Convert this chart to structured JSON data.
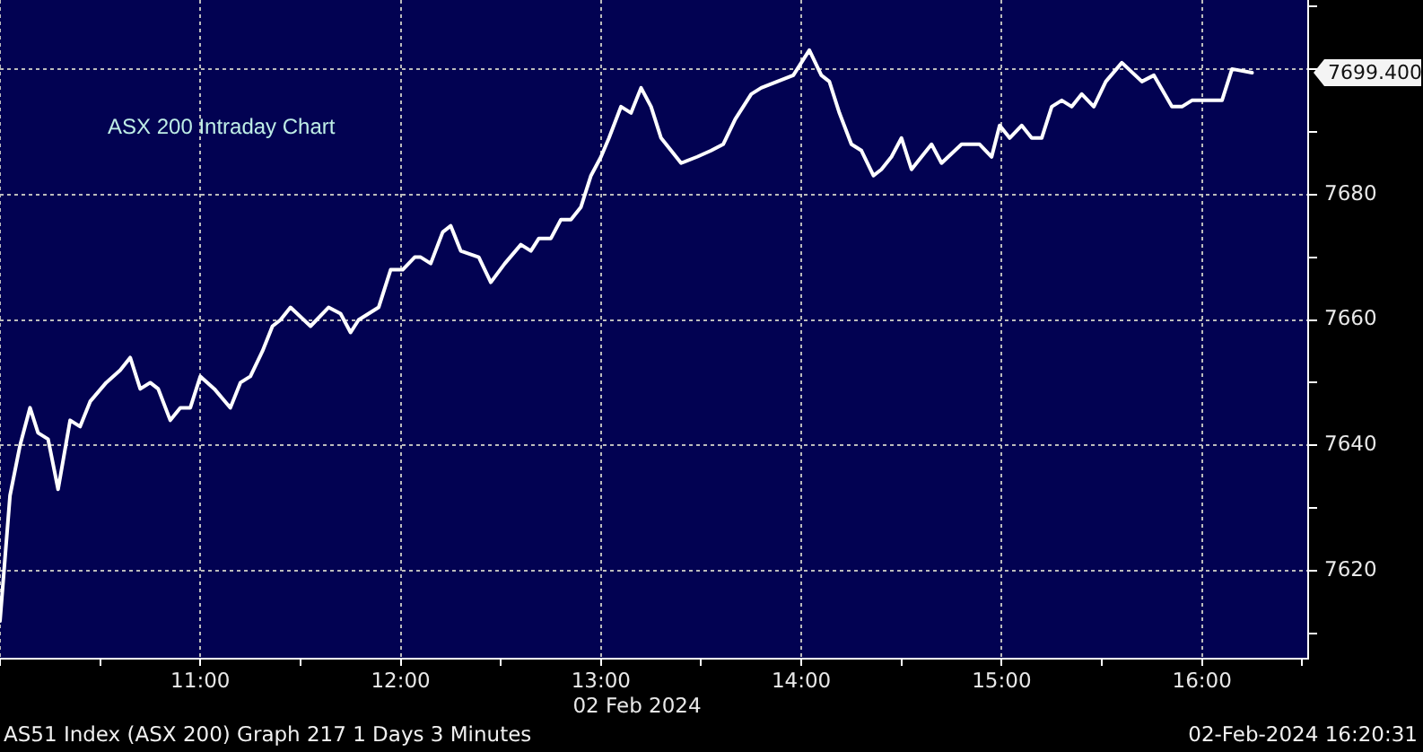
{
  "chart_data": {
    "type": "line",
    "title": "ASX 200 Intraday Chart",
    "xlabel": "02 Feb 2024",
    "x": [
      10,
      10.05,
      10.1,
      10.15,
      10.19,
      10.24,
      10.29,
      10.35,
      10.4,
      10.45,
      10.53,
      10.6,
      10.65,
      10.7,
      10.75,
      10.79,
      10.85,
      10.9,
      10.95,
      11,
      11.07,
      11.15,
      11.2,
      11.25,
      11.31,
      11.36,
      11.4,
      11.45,
      11.55,
      11.64,
      11.7,
      11.75,
      11.79,
      11.84,
      11.89,
      11.95,
      12.01,
      12.07,
      12.1,
      12.15,
      12.21,
      12.25,
      12.3,
      12.39,
      12.45,
      12.52,
      12.6,
      12.65,
      12.69,
      12.75,
      12.8,
      12.85,
      12.9,
      12.95,
      13,
      13.04,
      13.1,
      13.15,
      13.2,
      13.25,
      13.3,
      13.35,
      13.4,
      13.48,
      13.55,
      13.61,
      13.67,
      13.75,
      13.8,
      13.88,
      13.96,
      14.04,
      14.1,
      14.14,
      14.19,
      14.25,
      14.3,
      14.36,
      14.4,
      14.45,
      14.5,
      14.55,
      14.6,
      14.65,
      14.7,
      14.8,
      14.89,
      14.95,
      14.99,
      15.04,
      15.1,
      15.15,
      15.2,
      15.25,
      15.3,
      15.35,
      15.4,
      15.46,
      15.52,
      15.6,
      15.7,
      15.76,
      15.85,
      15.9,
      15.95,
      16,
      16.1,
      16.15,
      16.25
    ],
    "series": [
      {
        "color": "#ffffff",
        "values": [
          7612,
          7632,
          7640,
          7646,
          7642,
          7641,
          7633,
          7644,
          7643,
          7647,
          7650,
          7652,
          7654,
          7649,
          7650,
          7649,
          7644,
          7646,
          7646,
          7651,
          7649,
          7646,
          7650,
          7651,
          7655,
          7659,
          7660,
          7662,
          7659,
          7662,
          7661,
          7658,
          7660,
          7661,
          7662,
          7668,
          7668,
          7670,
          7670,
          7669,
          7674,
          7675,
          7671,
          7670,
          7666,
          7669,
          7672,
          7671,
          7673,
          7673,
          7676,
          7676,
          7678,
          7683,
          7686,
          7689,
          7694,
          7693,
          7697,
          7694,
          7689,
          7687,
          7685,
          7686,
          7687,
          7688,
          7692,
          7696,
          7697,
          7698,
          7699,
          7703,
          7699,
          7698,
          7693,
          7688,
          7687,
          7683,
          7684,
          7686,
          7689,
          7684,
          7686,
          7688,
          7685,
          7688,
          7688,
          7686,
          7691,
          7689,
          7691,
          7689,
          7689,
          7694,
          7695,
          7694,
          7696,
          7694,
          7698,
          7701,
          7698,
          7699,
          7694,
          7694,
          7695,
          7695,
          7695,
          7700,
          7699.4
        ]
      }
    ],
    "xlim": [
      10,
      16.53
    ],
    "ylim": [
      7606,
      7711
    ],
    "xticks": [
      {
        "value": 10,
        "label": null
      },
      {
        "value": 10.5,
        "label": null
      },
      {
        "value": 11,
        "label": "11:00"
      },
      {
        "value": 11.5,
        "label": null
      },
      {
        "value": 12,
        "label": "12:00"
      },
      {
        "value": 12.5,
        "label": null
      },
      {
        "value": 13,
        "label": "13:00"
      },
      {
        "value": 13.5,
        "label": null
      },
      {
        "value": 14,
        "label": "14:00"
      },
      {
        "value": 14.5,
        "label": null
      },
      {
        "value": 15,
        "label": "15:00"
      },
      {
        "value": 15.5,
        "label": null
      },
      {
        "value": 16,
        "label": "16:00"
      },
      {
        "value": 16.5,
        "label": null
      }
    ],
    "yticks": [
      {
        "value": 7610,
        "label": null
      },
      7620,
      {
        "value": 7630,
        "label": null
      },
      7640,
      {
        "value": 7650,
        "label": null
      },
      7660,
      {
        "value": 7670,
        "label": null
      },
      7680,
      {
        "value": 7690,
        "label": null
      },
      {
        "value": 7700,
        "label": null
      },
      {
        "value": 7710,
        "label": null
      }
    ],
    "grid": true,
    "marker": "none",
    "annotations": [
      "7699.400",
      "AS51 Index (ASX 200) Graph 217 1 Days 3 Minutes",
      "02-Feb-2024 16:20:31"
    ]
  }
}
